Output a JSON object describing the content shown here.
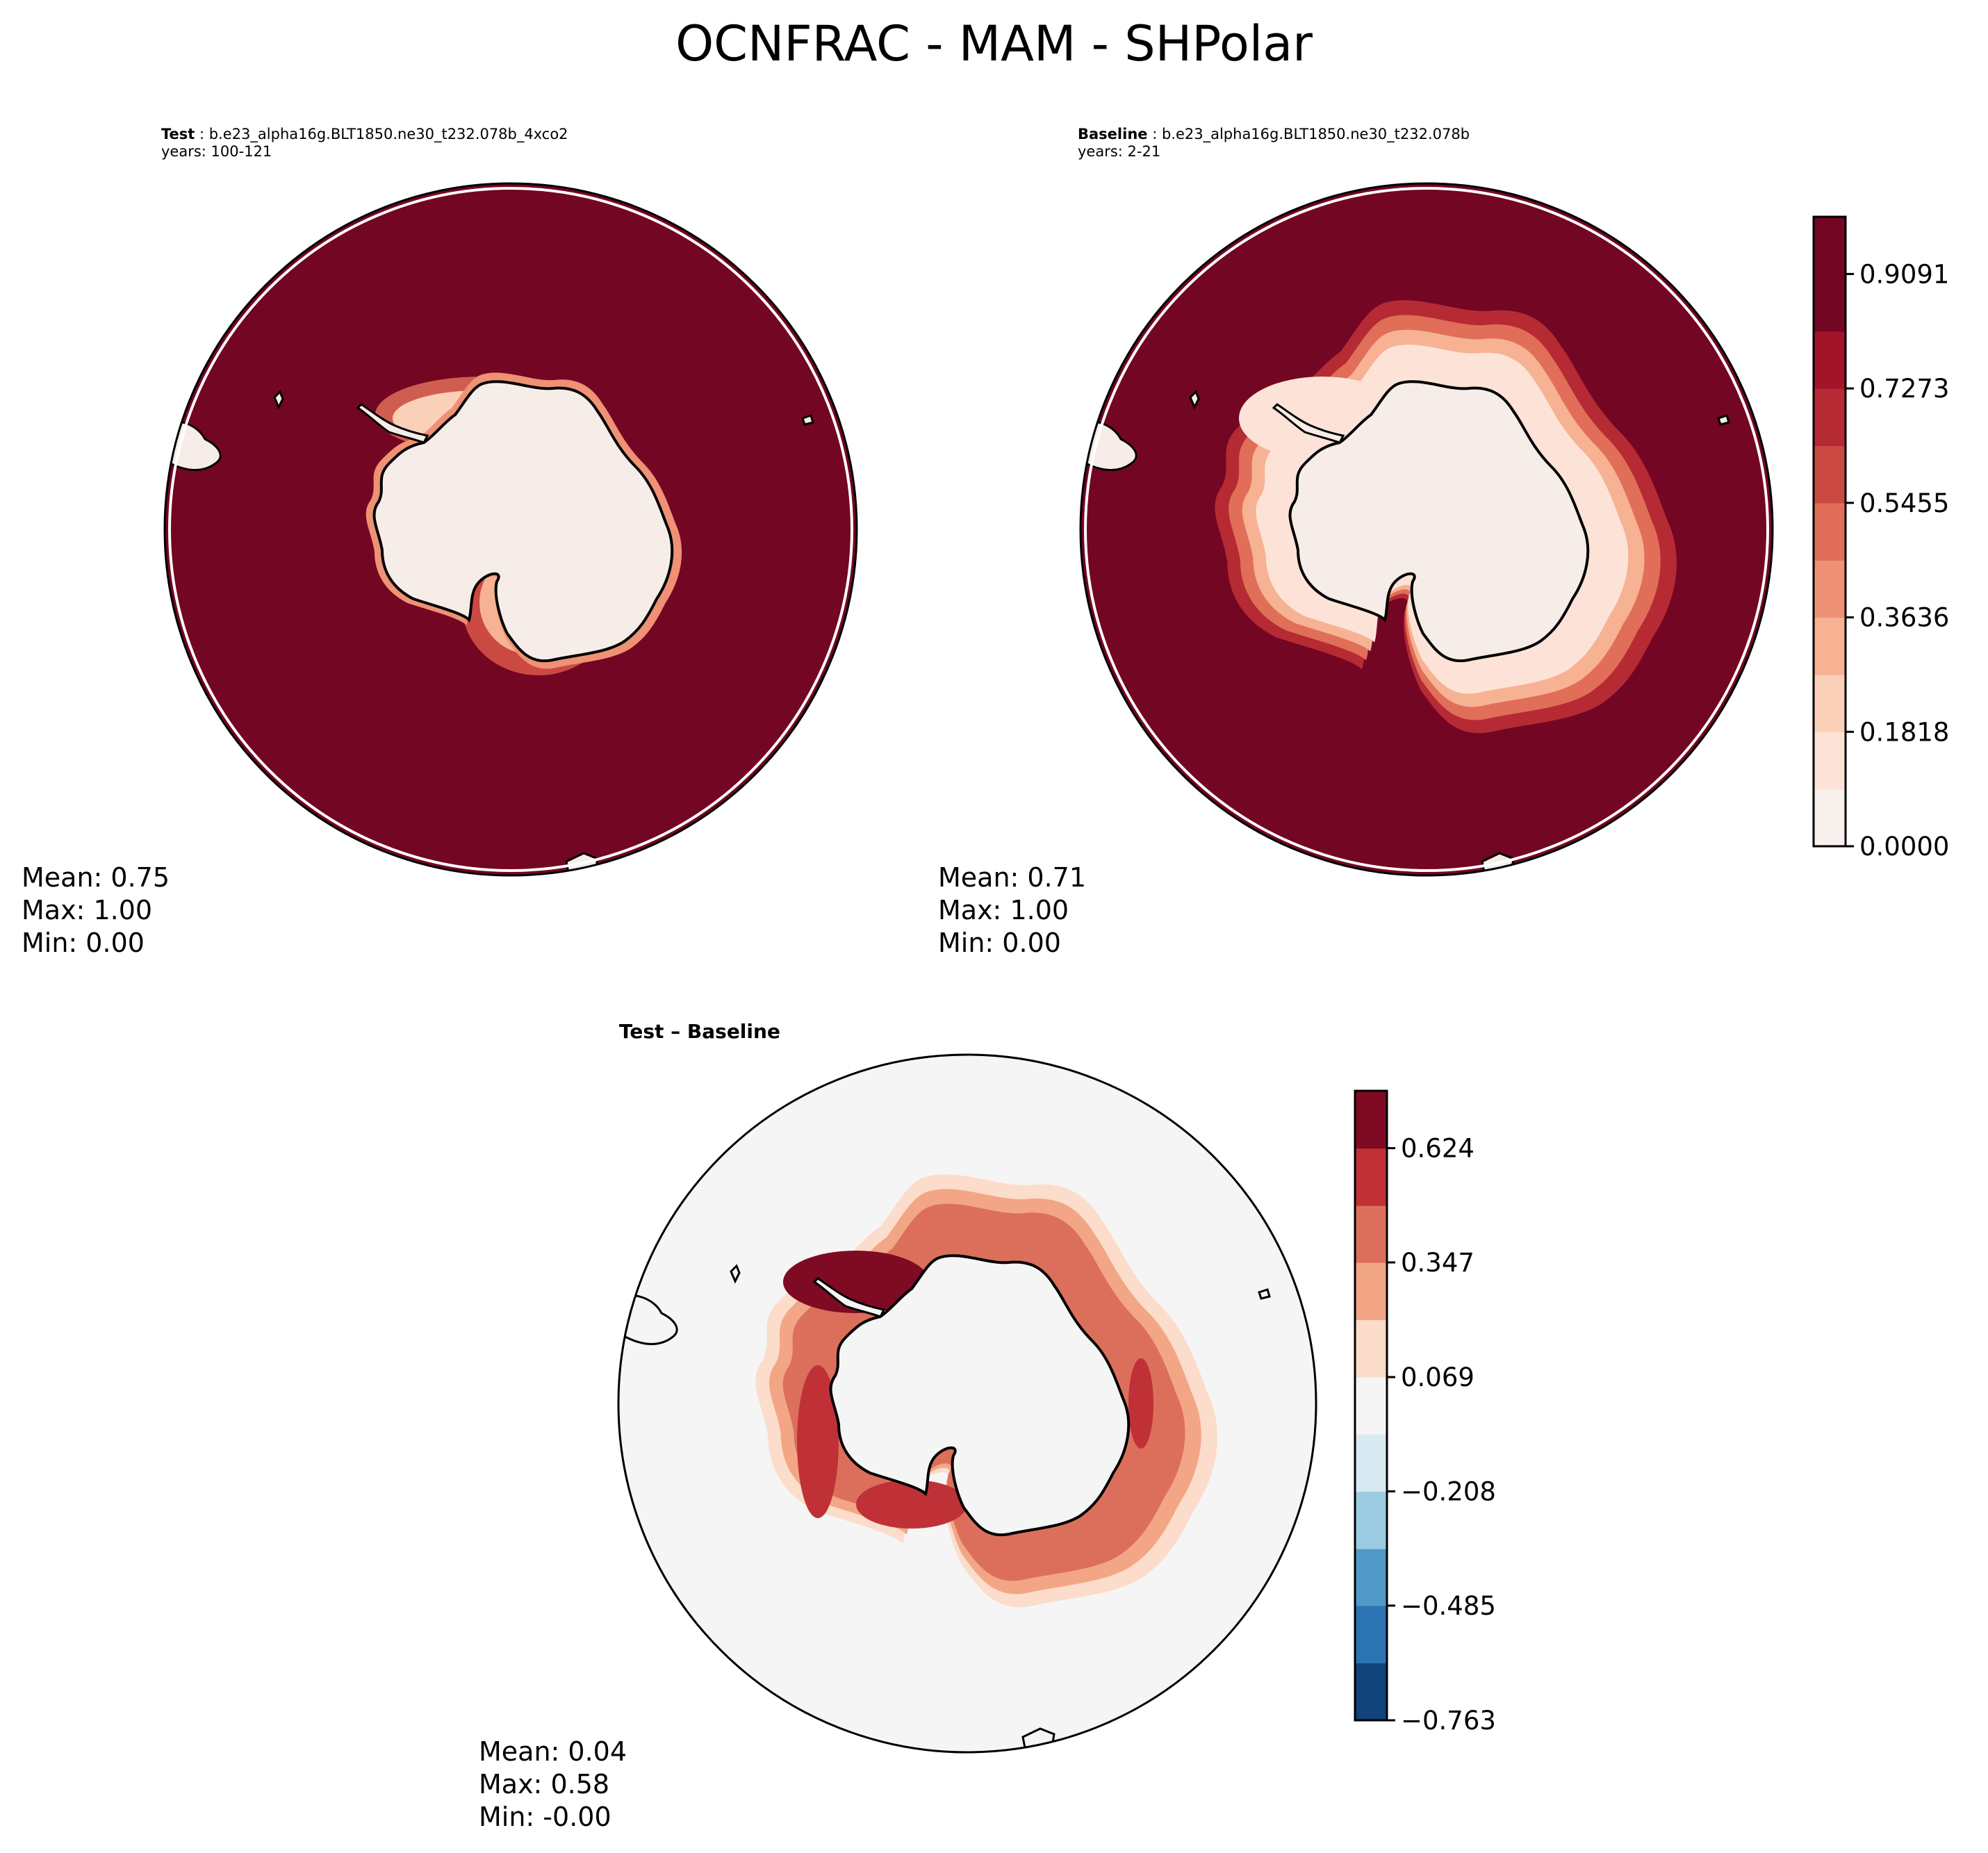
{
  "figure_title": "OCNFRAC - MAM - SHPolar",
  "panels": [
    {
      "id": "test",
      "label": "Test",
      "case": "b.e23_alpha16g.BLT1850.ne30_t232.078b_4xco2",
      "years": "years: 100-121",
      "stats": {
        "mean": "Mean:  0.75",
        "max": "Max:  1.00",
        "min": "Min:  0.00"
      }
    },
    {
      "id": "baseline",
      "label": "Baseline",
      "case": "b.e23_alpha16g.BLT1850.ne30_t232.078b",
      "years": "years: 2-21",
      "stats": {
        "mean": "Mean:  0.71",
        "max": "Max:  1.00",
        "min": "Min:  0.00"
      }
    },
    {
      "id": "diff",
      "title": "Test – Baseline",
      "stats": {
        "mean": "Mean:  0.04",
        "max": "Max:  0.58",
        "min": "Min: -0.00"
      }
    }
  ],
  "colors": {
    "ocean_full": "#730623",
    "land_white": "#f7ede8",
    "neutral": "#f5f5f5",
    "coast": "#000000",
    "abs_levels": [
      "#f7f0ec",
      "#fde3d7",
      "#fbd0b9",
      "#f6b293",
      "#ee9174",
      "#e06e58",
      "#ca4a43",
      "#b62a34",
      "#a11429",
      "#730623"
    ],
    "diff_levels": [
      "#0f437a",
      "#2b73b3",
      "#5199c7",
      "#9ccbe2",
      "#d8e9f2",
      "#f5f5f5",
      "#fcdccb",
      "#f2a686",
      "#dc6f5b",
      "#bf3137",
      "#7e0b23"
    ]
  },
  "chart_data": [
    {
      "type": "heatmap",
      "projection": "south-polar-stereographic",
      "title": "Test: b.e23_alpha16g.BLT1850.ne30_t232.078b_4xco2",
      "subtitle": "years: 100-121",
      "variable": "OCNFRAC",
      "season": "MAM",
      "region": "SHPolar",
      "stats": {
        "mean": 0.75,
        "max": 1.0,
        "min": 0.0
      },
      "colorbar": {
        "shared_with": "baseline"
      }
    },
    {
      "type": "heatmap",
      "projection": "south-polar-stereographic",
      "title": "Baseline: b.e23_alpha16g.BLT1850.ne30_t232.078b",
      "subtitle": "years: 2-21",
      "variable": "OCNFRAC",
      "season": "MAM",
      "region": "SHPolar",
      "stats": {
        "mean": 0.71,
        "max": 1.0,
        "min": 0.0
      },
      "colorbar": {
        "levels": [
          0.0,
          0.0909,
          0.1818,
          0.2727,
          0.3636,
          0.4545,
          0.5455,
          0.6364,
          0.7273,
          0.8182,
          0.9091,
          1.0
        ],
        "tick_labels": [
          "0.0000",
          "0.1818",
          "0.3636",
          "0.5455",
          "0.7273",
          "0.9091"
        ],
        "range": [
          0.0,
          1.0
        ],
        "cmap": "RdBu_r"
      }
    },
    {
      "type": "heatmap",
      "projection": "south-polar-stereographic",
      "title": "Test – Baseline",
      "variable": "OCNFRAC difference",
      "stats": {
        "mean": 0.04,
        "max": 0.58,
        "min": -0.0
      },
      "colorbar": {
        "levels": [
          -0.763,
          -0.624,
          -0.485,
          -0.347,
          -0.208,
          -0.069,
          0.069,
          0.208,
          0.347,
          0.485,
          0.624,
          0.763
        ],
        "tick_labels": [
          "−0.763",
          "−0.485",
          "−0.208",
          "0.069",
          "0.347",
          "0.624"
        ],
        "range": [
          -0.763,
          0.763
        ],
        "cmap": "RdBu_r"
      }
    }
  ]
}
